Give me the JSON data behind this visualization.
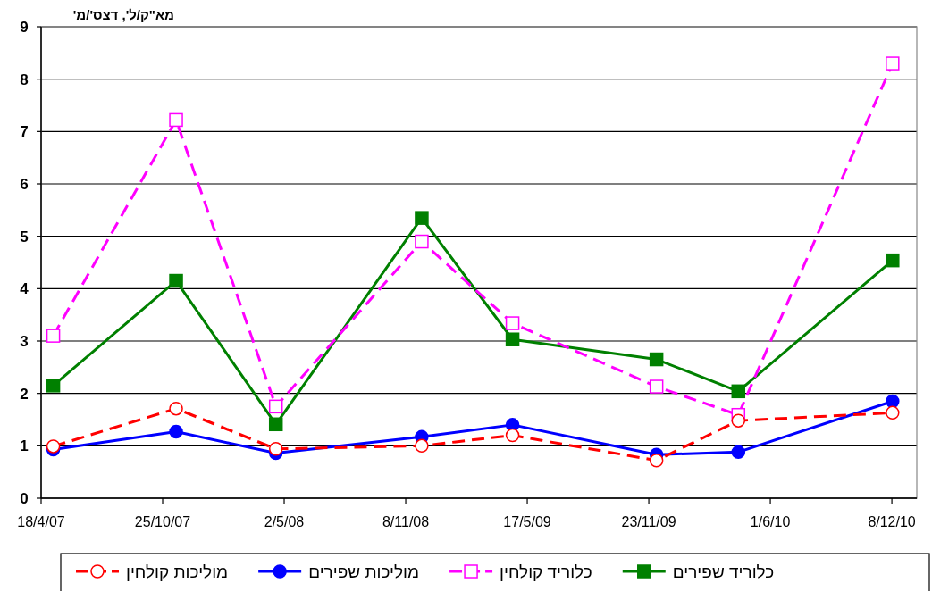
{
  "chart_data": {
    "type": "line",
    "ylabel": "מא\"ק/ל', דצס'/מ'",
    "x": [
      "2007-05-07",
      "2007-11-15",
      "2008-04-19",
      "2008-12-03",
      "2009-04-24",
      "2009-12-05",
      "2010-04-12",
      "2010-12-09"
    ],
    "series": [
      {
        "name": "מוליכות קולחין",
        "color": "#ff0000",
        "line_style": "dashed",
        "marker": "circle",
        "values": [
          0.99,
          1.71,
          0.94,
          1.0,
          1.2,
          0.72,
          1.48,
          1.63
        ]
      },
      {
        "name": "מוליכות שפירים",
        "color": "#0000ff",
        "line_style": "solid",
        "marker": "circle",
        "values": [
          0.93,
          1.27,
          0.86,
          1.17,
          1.4,
          0.83,
          0.88,
          1.85
        ]
      },
      {
        "name": "כלוריד קולחין",
        "color": "#ff00ff",
        "line_style": "dashed",
        "marker": "square",
        "values": [
          3.1,
          7.22,
          1.75,
          4.9,
          3.34,
          2.13,
          1.59,
          8.3
        ]
      },
      {
        "name": "כלוריד שפירים",
        "color": "#008000",
        "line_style": "solid",
        "marker": "square",
        "values": [
          2.15,
          4.15,
          1.41,
          5.35,
          3.03,
          2.65,
          2.04,
          4.54
        ]
      }
    ],
    "xlim": [
      "2007-04-18",
      "2011-01-16"
    ],
    "xticks": [
      {
        "value": "2007-04-18",
        "label": "18/4/07"
      },
      {
        "value": "2007-10-25",
        "label": "25/10/07"
      },
      {
        "value": "2008-05-02",
        "label": "2/5/08"
      },
      {
        "value": "2008-11-08",
        "label": "8/11/08"
      },
      {
        "value": "2009-05-17",
        "label": "17/5/09"
      },
      {
        "value": "2009-11-23",
        "label": "23/11/09"
      },
      {
        "value": "2010-06-01",
        "label": "1/6/10"
      },
      {
        "value": "2010-12-08",
        "label": "8/12/10"
      }
    ],
    "ylim": [
      0,
      9
    ],
    "yticks": [
      0,
      1,
      2,
      3,
      4,
      5,
      6,
      7,
      8,
      9
    ],
    "grid": "y",
    "legend": "bottom"
  }
}
